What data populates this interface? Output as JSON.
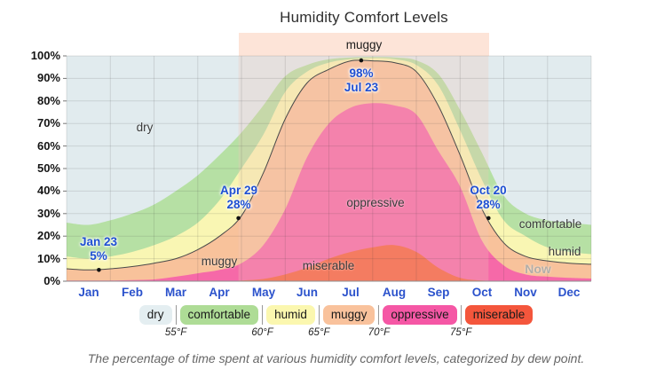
{
  "title": "Humidity Comfort Levels",
  "caption": "The percentage of time spent at various humidity comfort levels, categorized by dew point.",
  "season_band": {
    "label": "muggy",
    "start_month": 3.93,
    "end_month": 9.65
  },
  "y_axis": {
    "tick_labels": [
      "0%",
      "10%",
      "20%",
      "30%",
      "40%",
      "50%",
      "60%",
      "70%",
      "80%",
      "90%",
      "100%"
    ]
  },
  "x_axis": {
    "months": [
      "Jan",
      "Feb",
      "Mar",
      "Apr",
      "May",
      "Jun",
      "Jul",
      "Aug",
      "Sep",
      "Oct",
      "Nov",
      "Dec"
    ]
  },
  "annotations": [
    {
      "date": "Jan 23",
      "value": "5%",
      "x_month": 0.74,
      "percent": 5,
      "text_position": "above"
    },
    {
      "date": "Apr 29",
      "value": "28%",
      "x_month": 3.93,
      "percent": 28,
      "text_position": "above"
    },
    {
      "date": "Jul 23",
      "value": "98%",
      "x_month": 6.74,
      "percent": 98,
      "text_position": "below"
    },
    {
      "date": "Oct 20",
      "value": "28%",
      "x_month": 9.65,
      "percent": 28,
      "text_position": "above"
    }
  ],
  "area_labels": [
    {
      "text": "dry",
      "x_month": 1.79,
      "percent": 68,
      "muted": false
    },
    {
      "text": "muggy",
      "x_month": 3.49,
      "percent": 8.7,
      "muted": false
    },
    {
      "text": "oppressive",
      "x_month": 7.07,
      "percent": 34.6,
      "muted": false
    },
    {
      "text": "miserable",
      "x_month": 5.99,
      "percent": 6.7,
      "muted": false
    },
    {
      "text": "comfortable",
      "x_month": 11.07,
      "percent": 25.2,
      "muted": false
    },
    {
      "text": "humid",
      "x_month": 11.39,
      "percent": 13,
      "muted": false
    },
    {
      "text": "Now",
      "x_month": 10.78,
      "percent": 5.5,
      "muted": true
    }
  ],
  "legend": {
    "items": [
      {
        "label": "dry",
        "color": "#e4eef1"
      },
      {
        "label": "comfortable",
        "color": "#aedc96"
      },
      {
        "label": "humid",
        "color": "#fbf7af"
      },
      {
        "label": "muggy",
        "color": "#f9c29c"
      },
      {
        "label": "oppressive",
        "color": "#f557a5"
      },
      {
        "label": "miserable",
        "color": "#f4563c"
      }
    ],
    "thresholds": [
      "55°F",
      "60°F",
      "65°F",
      "70°F",
      "75°F"
    ]
  },
  "colors": {
    "dry_area": "#e1ebee",
    "comfortable_area": "#b6e0a4",
    "humid_area": "#f9f6b3",
    "muggy_area": "#f8c29b",
    "oppressive_area": "#f669a8",
    "miserable_area": "#f56040",
    "season_band_bg": "#fde4d8",
    "season_overlay": "rgba(242,196,183,0.28)",
    "grid": "rgba(60,60,60,0.14)",
    "axis": "#8f8f8f",
    "muggy_line": "#4a4a4a",
    "dot": "#111111"
  },
  "chart_data": {
    "type": "area",
    "stacked": true,
    "title": "Humidity Comfort Levels",
    "ylabel": "percentage of time",
    "ylim": [
      0,
      100
    ],
    "x_unit": "month (0 = Jan 1, 12 = Dec 31)",
    "x_months": [
      0,
      0.5,
      1,
      1.5,
      2,
      2.5,
      3,
      3.5,
      4,
      4.5,
      5,
      5.5,
      6,
      6.5,
      7,
      7.5,
      8,
      8.5,
      9,
      9.5,
      10,
      10.5,
      11,
      11.5,
      12
    ],
    "series": [
      {
        "name": "miserable",
        "cumulative_top": [
          0,
          0,
          0,
          0,
          0,
          0,
          0,
          0,
          0.3,
          1,
          3,
          6,
          10,
          13,
          15,
          16,
          13,
          6,
          1.5,
          0.3,
          0,
          0,
          0,
          0,
          0
        ]
      },
      {
        "name": "oppressive",
        "cumulative_top": [
          0.3,
          0.3,
          0.3,
          0.5,
          0.8,
          2,
          3.5,
          5,
          8,
          16,
          32,
          55,
          70,
          77,
          79,
          78,
          74,
          58,
          42,
          18,
          7,
          3,
          2,
          1.5,
          1.2
        ]
      },
      {
        "name": "muggy",
        "cumulative_top": [
          5.5,
          5,
          5.5,
          6.5,
          8,
          10,
          14,
          20,
          29,
          48,
          72,
          88,
          94,
          97.8,
          97.8,
          97,
          93,
          78,
          56,
          32,
          17,
          11,
          9,
          8,
          7.5
        ]
      },
      {
        "name": "humid",
        "cumulative_top": [
          11,
          10,
          11,
          13,
          16,
          20,
          26,
          36,
          50,
          65,
          84,
          93,
          97,
          98.5,
          99,
          98.5,
          96,
          87,
          67,
          45,
          27,
          20,
          15,
          13,
          12
        ]
      },
      {
        "name": "comfortable",
        "cumulative_top": [
          26,
          25,
          27,
          30,
          34,
          40,
          47,
          56,
          66,
          78,
          91,
          96,
          98.5,
          99.3,
          99.5,
          99.3,
          98,
          92,
          76,
          57,
          38,
          30,
          27,
          26,
          25
        ]
      },
      {
        "name": "dry",
        "cumulative_top": [
          100,
          100,
          100,
          100,
          100,
          100,
          100,
          100,
          100,
          100,
          100,
          100,
          100,
          100,
          100,
          100,
          100,
          100,
          100,
          100,
          100,
          100,
          100,
          100,
          100
        ]
      }
    ],
    "key_points": [
      {
        "date": "Jan 23",
        "muggy_top_percent": 5
      },
      {
        "date": "Apr 29",
        "muggy_top_percent": 28
      },
      {
        "date": "Jul 23",
        "muggy_top_percent": 98
      },
      {
        "date": "Oct 20",
        "muggy_top_percent": 28
      }
    ],
    "legend_position": "bottom",
    "grid": true
  }
}
